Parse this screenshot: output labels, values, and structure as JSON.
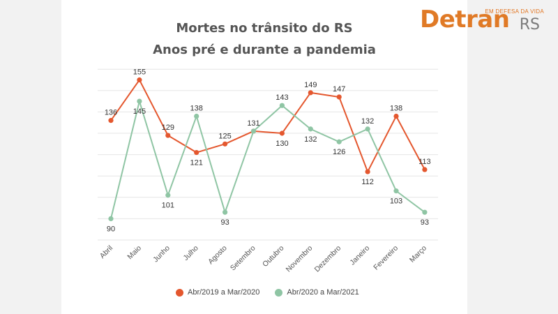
{
  "title_line1": "Mortes no trânsito do RS",
  "title_line2": "Anos pré e durante a pandemia",
  "brand": {
    "tagline": "EM DEFESA DA VIDA",
    "main": "Detran",
    "suffix": "RS"
  },
  "colors": {
    "series1": "#e4572e",
    "series2": "#8fc5a4",
    "grid": "#e6e6e6",
    "label": "#333333"
  },
  "chart_data": {
    "type": "line",
    "title": "Mortes no trânsito do RS — Anos pré e durante a pandemia",
    "categories": [
      "Abril",
      "Maio",
      "Junho",
      "Julho",
      "Agosto",
      "Setembro",
      "Outubro",
      "Novembro",
      "Dezembro",
      "Janeiro",
      "Fevereiro",
      "Março"
    ],
    "series": [
      {
        "name": "Abr/2019 a Mar/2020",
        "values": [
          136,
          155,
          129,
          121,
          125,
          131,
          130,
          149,
          147,
          112,
          138,
          113
        ]
      },
      {
        "name": "Abr/2020 a Mar/2021",
        "values": [
          90,
          145,
          101,
          138,
          93,
          131,
          143,
          132,
          126,
          132,
          103,
          93
        ]
      }
    ],
    "ylim": [
      80,
      160
    ],
    "grid": true,
    "legend": "bottom"
  }
}
